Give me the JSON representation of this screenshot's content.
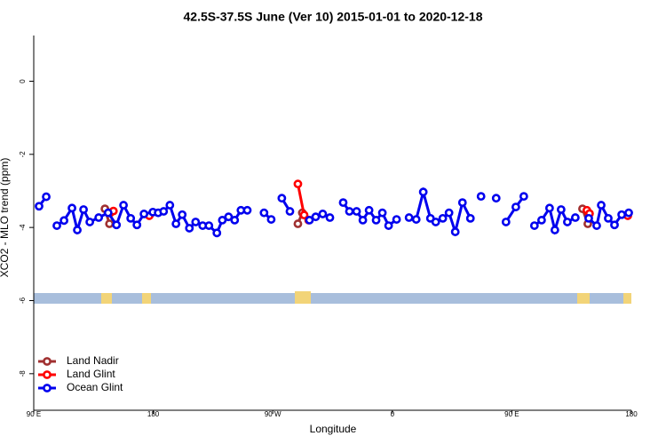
{
  "chart_data": {
    "type": "line",
    "title": "42.5S-37.5S June (Ver 10)   2015-01-01 to 2020-12-18",
    "x_label": "Longitude",
    "y_label": "XCO2 - MLO trend (ppm)",
    "xlim": [
      90,
      540
    ],
    "ylim": [
      -9,
      1.25
    ],
    "xticks": [
      {
        "value": 90,
        "label": "90 E"
      },
      180,
      {
        "value": 270,
        "label": "90 W"
      },
      {
        "value": 360,
        "label": "0"
      },
      {
        "value": 450,
        "label": "90 E"
      },
      {
        "value": 540,
        "label": "180"
      }
    ],
    "yticks": [
      0,
      -2,
      -4,
      -6,
      -8
    ],
    "legend": "bottom-left",
    "series": [
      {
        "name": "Land Nadir",
        "color": "#a03030",
        "x": [
          143.6,
          147,
          null,
          288.9,
          292.2,
          null,
          503.2,
          507.2
        ],
        "values": [
          -3.49,
          -3.9,
          null,
          -3.9,
          -3.6,
          null,
          -3.49,
          -3.9
        ]
      },
      {
        "name": "Land Glint",
        "color": "#ff0000",
        "x": [
          147.6,
          150,
          null,
          177,
          null,
          288.9,
          293.6,
          297,
          null,
          506.5,
          508.5,
          null,
          537.3
        ],
        "values": [
          -3.6,
          -3.55,
          null,
          -3.68,
          null,
          -2.81,
          -3.66,
          -3.8,
          null,
          -3.53,
          -3.62,
          null,
          -3.68
        ]
      },
      {
        "name": "Ocean Glint",
        "color": "#0000ee",
        "x": [
          94,
          99.4,
          null,
          107.4,
          112.8,
          118.8,
          122.8,
          127.5,
          132.2,
          138.9,
          146,
          152.3,
          157.6,
          163,
          167.7,
          173,
          179.7,
          183.7,
          187.8,
          192.5,
          197.1,
          201.8,
          207.2,
          211.9,
          217.2,
          221.9,
          227.9,
          232,
          236.7,
          241.3,
          246,
          250.8,
          null,
          263.4,
          268.8,
          null,
          276.8,
          282.9,
          null,
          297.6,
          302.3,
          307.6,
          313,
          null,
          323,
          327.7,
          333.1,
          337.8,
          342.5,
          347.8,
          352.5,
          357.2,
          363.2,
          null,
          372.6,
          378,
          383.3,
          388.7,
          392.7,
          398,
          402.7,
          407.4,
          412.8,
          418.8,
          null,
          426.8,
          null,
          438.2,
          null,
          445.6,
          453,
          459,
          null,
          467,
          472.4,
          478.4,
          482.4,
          487.1,
          491.8,
          497.8,
          null,
          507.9,
          513.9,
          517.3,
          522.6,
          527.3,
          532.7,
          538
        ],
        "values": [
          -3.42,
          -3.16,
          null,
          -3.95,
          -3.81,
          -3.47,
          -4.07,
          -3.51,
          -3.85,
          -3.73,
          -3.6,
          -3.93,
          -3.39,
          -3.75,
          -3.93,
          -3.63,
          -3.58,
          -3.6,
          -3.56,
          -3.39,
          -3.9,
          -3.65,
          -4.02,
          -3.85,
          -3.95,
          -3.95,
          -4.15,
          -3.8,
          -3.71,
          -3.8,
          -3.53,
          -3.53,
          null,
          -3.6,
          -3.78,
          null,
          -3.2,
          -3.56,
          null,
          -3.8,
          -3.71,
          -3.63,
          -3.73,
          null,
          -3.32,
          -3.56,
          -3.56,
          -3.8,
          -3.53,
          -3.8,
          -3.6,
          -3.95,
          -3.78,
          null,
          -3.73,
          -3.78,
          -3.03,
          -3.75,
          -3.85,
          -3.75,
          -3.6,
          -4.12,
          -3.32,
          -3.75,
          null,
          -3.15,
          null,
          -3.2,
          null,
          -3.85,
          -3.44,
          -3.15,
          null,
          -3.95,
          -3.8,
          -3.47,
          -4.07,
          -3.51,
          -3.85,
          -3.73,
          null,
          -3.75,
          -3.95,
          -3.39,
          -3.75,
          -3.93,
          -3.65,
          -3.6
        ]
      }
    ]
  }
}
